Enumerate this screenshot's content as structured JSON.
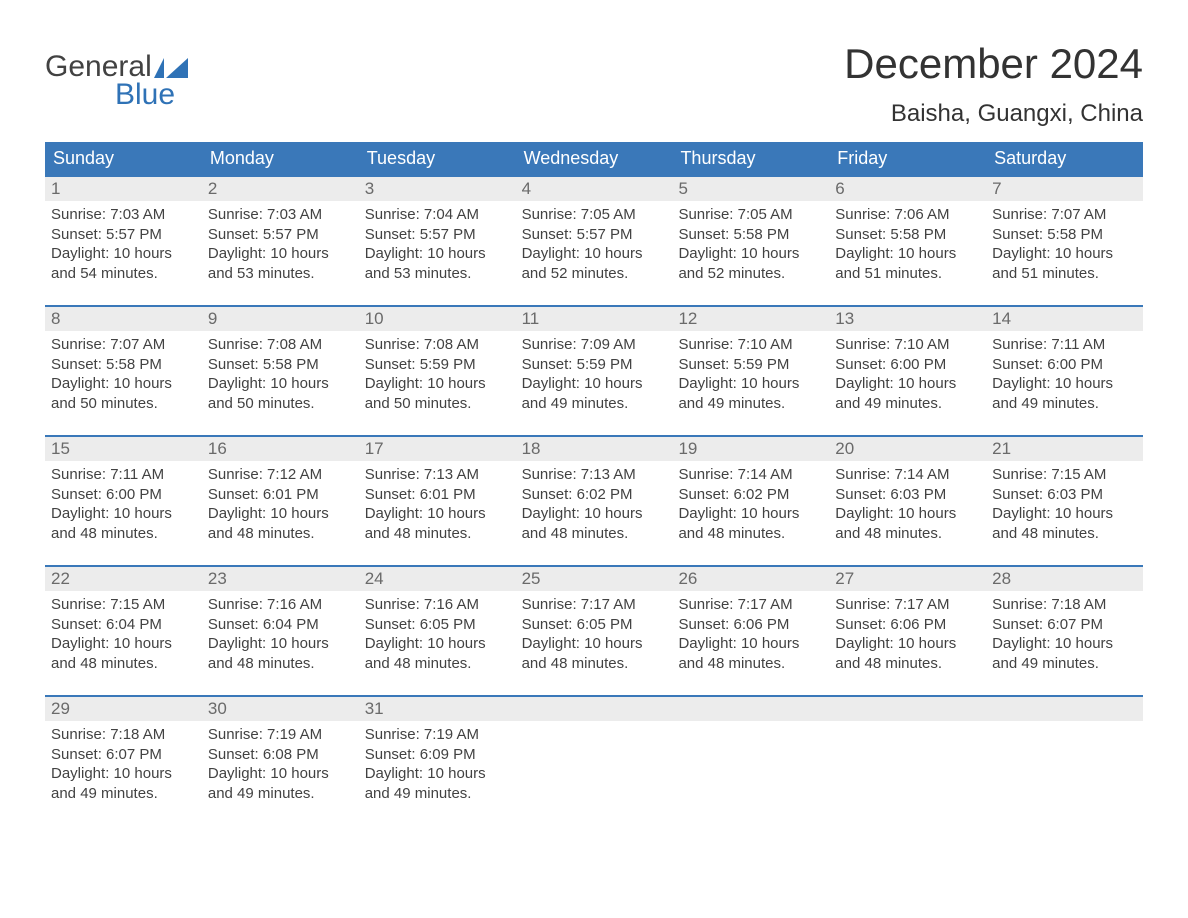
{
  "colors": {
    "header_bg": "#3a78b9",
    "header_text": "#ffffff",
    "daynum_bg": "#ececec",
    "daynum_text": "#6a6a6a",
    "body_text": "#424242",
    "logo_blue": "#2f72b6",
    "week_border": "#3a78b9"
  },
  "logo": {
    "top": "General",
    "bottom": "Blue"
  },
  "title": "December 2024",
  "location": "Baisha, Guangxi, China",
  "weekdays": [
    "Sunday",
    "Monday",
    "Tuesday",
    "Wednesday",
    "Thursday",
    "Friday",
    "Saturday"
  ],
  "weeks": [
    [
      {
        "num": "1",
        "sunrise": "Sunrise: 7:03 AM",
        "sunset": "Sunset: 5:57 PM",
        "dl1": "Daylight: 10 hours",
        "dl2": "and 54 minutes."
      },
      {
        "num": "2",
        "sunrise": "Sunrise: 7:03 AM",
        "sunset": "Sunset: 5:57 PM",
        "dl1": "Daylight: 10 hours",
        "dl2": "and 53 minutes."
      },
      {
        "num": "3",
        "sunrise": "Sunrise: 7:04 AM",
        "sunset": "Sunset: 5:57 PM",
        "dl1": "Daylight: 10 hours",
        "dl2": "and 53 minutes."
      },
      {
        "num": "4",
        "sunrise": "Sunrise: 7:05 AM",
        "sunset": "Sunset: 5:57 PM",
        "dl1": "Daylight: 10 hours",
        "dl2": "and 52 minutes."
      },
      {
        "num": "5",
        "sunrise": "Sunrise: 7:05 AM",
        "sunset": "Sunset: 5:58 PM",
        "dl1": "Daylight: 10 hours",
        "dl2": "and 52 minutes."
      },
      {
        "num": "6",
        "sunrise": "Sunrise: 7:06 AM",
        "sunset": "Sunset: 5:58 PM",
        "dl1": "Daylight: 10 hours",
        "dl2": "and 51 minutes."
      },
      {
        "num": "7",
        "sunrise": "Sunrise: 7:07 AM",
        "sunset": "Sunset: 5:58 PM",
        "dl1": "Daylight: 10 hours",
        "dl2": "and 51 minutes."
      }
    ],
    [
      {
        "num": "8",
        "sunrise": "Sunrise: 7:07 AM",
        "sunset": "Sunset: 5:58 PM",
        "dl1": "Daylight: 10 hours",
        "dl2": "and 50 minutes."
      },
      {
        "num": "9",
        "sunrise": "Sunrise: 7:08 AM",
        "sunset": "Sunset: 5:58 PM",
        "dl1": "Daylight: 10 hours",
        "dl2": "and 50 minutes."
      },
      {
        "num": "10",
        "sunrise": "Sunrise: 7:08 AM",
        "sunset": "Sunset: 5:59 PM",
        "dl1": "Daylight: 10 hours",
        "dl2": "and 50 minutes."
      },
      {
        "num": "11",
        "sunrise": "Sunrise: 7:09 AM",
        "sunset": "Sunset: 5:59 PM",
        "dl1": "Daylight: 10 hours",
        "dl2": "and 49 minutes."
      },
      {
        "num": "12",
        "sunrise": "Sunrise: 7:10 AM",
        "sunset": "Sunset: 5:59 PM",
        "dl1": "Daylight: 10 hours",
        "dl2": "and 49 minutes."
      },
      {
        "num": "13",
        "sunrise": "Sunrise: 7:10 AM",
        "sunset": "Sunset: 6:00 PM",
        "dl1": "Daylight: 10 hours",
        "dl2": "and 49 minutes."
      },
      {
        "num": "14",
        "sunrise": "Sunrise: 7:11 AM",
        "sunset": "Sunset: 6:00 PM",
        "dl1": "Daylight: 10 hours",
        "dl2": "and 49 minutes."
      }
    ],
    [
      {
        "num": "15",
        "sunrise": "Sunrise: 7:11 AM",
        "sunset": "Sunset: 6:00 PM",
        "dl1": "Daylight: 10 hours",
        "dl2": "and 48 minutes."
      },
      {
        "num": "16",
        "sunrise": "Sunrise: 7:12 AM",
        "sunset": "Sunset: 6:01 PM",
        "dl1": "Daylight: 10 hours",
        "dl2": "and 48 minutes."
      },
      {
        "num": "17",
        "sunrise": "Sunrise: 7:13 AM",
        "sunset": "Sunset: 6:01 PM",
        "dl1": "Daylight: 10 hours",
        "dl2": "and 48 minutes."
      },
      {
        "num": "18",
        "sunrise": "Sunrise: 7:13 AM",
        "sunset": "Sunset: 6:02 PM",
        "dl1": "Daylight: 10 hours",
        "dl2": "and 48 minutes."
      },
      {
        "num": "19",
        "sunrise": "Sunrise: 7:14 AM",
        "sunset": "Sunset: 6:02 PM",
        "dl1": "Daylight: 10 hours",
        "dl2": "and 48 minutes."
      },
      {
        "num": "20",
        "sunrise": "Sunrise: 7:14 AM",
        "sunset": "Sunset: 6:03 PM",
        "dl1": "Daylight: 10 hours",
        "dl2": "and 48 minutes."
      },
      {
        "num": "21",
        "sunrise": "Sunrise: 7:15 AM",
        "sunset": "Sunset: 6:03 PM",
        "dl1": "Daylight: 10 hours",
        "dl2": "and 48 minutes."
      }
    ],
    [
      {
        "num": "22",
        "sunrise": "Sunrise: 7:15 AM",
        "sunset": "Sunset: 6:04 PM",
        "dl1": "Daylight: 10 hours",
        "dl2": "and 48 minutes."
      },
      {
        "num": "23",
        "sunrise": "Sunrise: 7:16 AM",
        "sunset": "Sunset: 6:04 PM",
        "dl1": "Daylight: 10 hours",
        "dl2": "and 48 minutes."
      },
      {
        "num": "24",
        "sunrise": "Sunrise: 7:16 AM",
        "sunset": "Sunset: 6:05 PM",
        "dl1": "Daylight: 10 hours",
        "dl2": "and 48 minutes."
      },
      {
        "num": "25",
        "sunrise": "Sunrise: 7:17 AM",
        "sunset": "Sunset: 6:05 PM",
        "dl1": "Daylight: 10 hours",
        "dl2": "and 48 minutes."
      },
      {
        "num": "26",
        "sunrise": "Sunrise: 7:17 AM",
        "sunset": "Sunset: 6:06 PM",
        "dl1": "Daylight: 10 hours",
        "dl2": "and 48 minutes."
      },
      {
        "num": "27",
        "sunrise": "Sunrise: 7:17 AM",
        "sunset": "Sunset: 6:06 PM",
        "dl1": "Daylight: 10 hours",
        "dl2": "and 48 minutes."
      },
      {
        "num": "28",
        "sunrise": "Sunrise: 7:18 AM",
        "sunset": "Sunset: 6:07 PM",
        "dl1": "Daylight: 10 hours",
        "dl2": "and 49 minutes."
      }
    ],
    [
      {
        "num": "29",
        "sunrise": "Sunrise: 7:18 AM",
        "sunset": "Sunset: 6:07 PM",
        "dl1": "Daylight: 10 hours",
        "dl2": "and 49 minutes."
      },
      {
        "num": "30",
        "sunrise": "Sunrise: 7:19 AM",
        "sunset": "Sunset: 6:08 PM",
        "dl1": "Daylight: 10 hours",
        "dl2": "and 49 minutes."
      },
      {
        "num": "31",
        "sunrise": "Sunrise: 7:19 AM",
        "sunset": "Sunset: 6:09 PM",
        "dl1": "Daylight: 10 hours",
        "dl2": "and 49 minutes."
      },
      {
        "empty": true
      },
      {
        "empty": true
      },
      {
        "empty": true
      },
      {
        "empty": true
      }
    ]
  ]
}
